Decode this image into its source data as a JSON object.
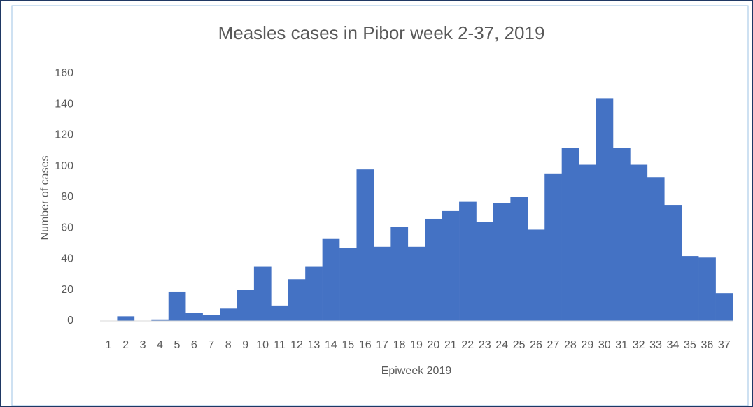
{
  "chart_data": {
    "type": "bar",
    "title": "Measles cases in Pibor week 2-37, 2019",
    "x_label": "Epiweek 2019",
    "y_label": "Number of cases",
    "categories": [
      "1",
      "2",
      "3",
      "4",
      "5",
      "6",
      "7",
      "8",
      "9",
      "10",
      "11",
      "12",
      "13",
      "14",
      "15",
      "16",
      "17",
      "18",
      "19",
      "20",
      "21",
      "22",
      "23",
      "24",
      "25",
      "26",
      "27",
      "28",
      "29",
      "30",
      "31",
      "32",
      "33",
      "34",
      "35",
      "36",
      "37"
    ],
    "values": [
      0,
      3,
      0,
      1,
      19,
      5,
      4,
      8,
      20,
      35,
      10,
      27,
      35,
      53,
      47,
      98,
      48,
      61,
      48,
      66,
      71,
      77,
      64,
      76,
      80,
      59,
      95,
      112,
      101,
      144,
      112,
      101,
      93,
      75,
      42,
      41,
      18
    ],
    "color": "#4472c4",
    "ylim": [
      0,
      160
    ],
    "yticks": [
      0,
      20,
      40,
      60,
      80,
      100,
      120,
      140,
      160
    ],
    "grid": false
  }
}
